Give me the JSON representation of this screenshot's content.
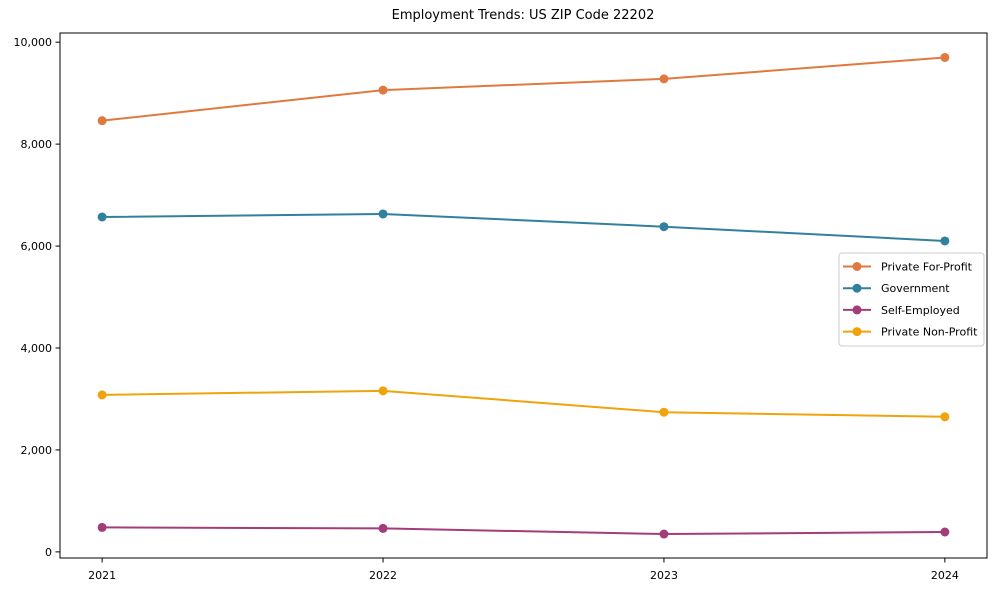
{
  "chart_data": {
    "type": "line",
    "title": "Employment Trends: US ZIP Code 22202",
    "xlabel": "",
    "ylabel": "",
    "x_categories": [
      "2021",
      "2022",
      "2023",
      "2024"
    ],
    "series": [
      {
        "name": "Private For-Profit",
        "color": "#e0793f",
        "values": [
          8460,
          9060,
          9280,
          9700
        ]
      },
      {
        "name": "Government",
        "color": "#31819e",
        "values": [
          6570,
          6630,
          6380,
          6100
        ]
      },
      {
        "name": "Self-Employed",
        "color": "#a23d79",
        "values": [
          480,
          460,
          350,
          390
        ]
      },
      {
        "name": "Private Non-Profit",
        "color": "#f0a30a",
        "values": [
          3080,
          3160,
          2740,
          2650
        ]
      }
    ],
    "y_ticks": [
      0,
      2000,
      4000,
      6000,
      8000,
      10000
    ],
    "y_tick_labels": [
      "0",
      "2,000",
      "4,000",
      "6,000",
      "8,000",
      "10,000"
    ],
    "ylim": [
      -120,
      10180
    ],
    "grid": false,
    "legend_position": "center-right",
    "marker": "circle",
    "colors": {
      "background": "#ffffff",
      "spine": "#000000",
      "legend_border": "#cccccc",
      "legend_background": "#ffffff"
    }
  }
}
